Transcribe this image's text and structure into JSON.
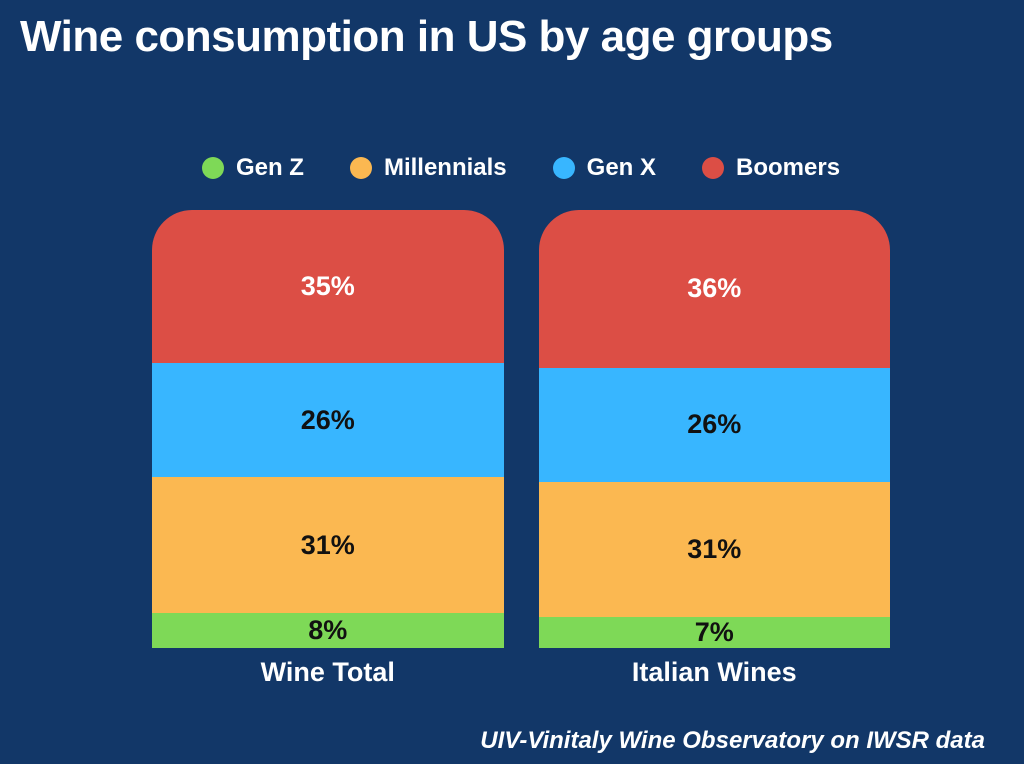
{
  "title": "Wine consumption in US by age groups",
  "source": "UIV-Vinitaly Wine Observatory on IWSR data",
  "colors": {
    "background": "#123768",
    "text_light": "#FFFFFF",
    "text_dark": "#111111",
    "gen_z": "#7ED957",
    "millennials": "#FBB851",
    "gen_x": "#38B6FF",
    "boomers": "#DC4E45"
  },
  "legend": [
    {
      "label": "Gen Z",
      "color": "#7ED957"
    },
    {
      "label": "Millennials",
      "color": "#FBB851"
    },
    {
      "label": "Gen X",
      "color": "#38B6FF"
    },
    {
      "label": "Boomers",
      "color": "#DC4E45"
    }
  ],
  "chart_data": {
    "type": "bar",
    "variant": "stacked-percentage-column",
    "title": "Wine consumption in US by age groups",
    "categories": [
      "Wine Total",
      "Italian Wines"
    ],
    "series": [
      {
        "name": "Boomers",
        "color": "#DC4E45",
        "label_color": "#FFFFFF",
        "values": [
          35,
          36
        ]
      },
      {
        "name": "Gen X",
        "color": "#38B6FF",
        "label_color": "#111111",
        "values": [
          26,
          26
        ]
      },
      {
        "name": "Millennials",
        "color": "#FBB851",
        "label_color": "#111111",
        "values": [
          31,
          31
        ]
      },
      {
        "name": "Gen Z",
        "color": "#7ED957",
        "label_color": "#111111",
        "values": [
          8,
          7
        ]
      }
    ],
    "value_suffix": "%",
    "stack_order": "top-to-bottom",
    "legend_position": "top",
    "ylim": [
      0,
      100
    ],
    "grid": false,
    "axes_visible": false
  }
}
